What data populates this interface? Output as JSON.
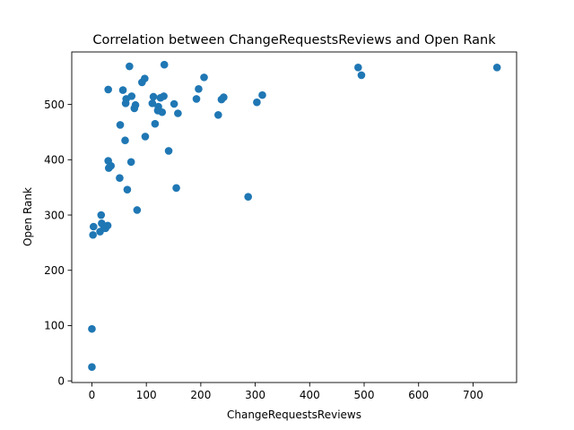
{
  "chart_data": {
    "type": "scatter",
    "title": "Correlation between ChangeRequestsReviews and Open Rank",
    "xlabel": "ChangeRequestsReviews",
    "ylabel": "Open Rank",
    "xlim": [
      -37,
      780
    ],
    "ylim": [
      -3,
      595
    ],
    "xticks": [
      0,
      100,
      200,
      300,
      400,
      500,
      600,
      700
    ],
    "yticks": [
      0,
      100,
      200,
      300,
      400,
      500
    ],
    "grid": false,
    "marker_color": "#1f77b4",
    "points": [
      {
        "x": 0,
        "y": 25
      },
      {
        "x": 0,
        "y": 94
      },
      {
        "x": 2,
        "y": 264
      },
      {
        "x": 3,
        "y": 279
      },
      {
        "x": 15,
        "y": 270
      },
      {
        "x": 17,
        "y": 300
      },
      {
        "x": 18,
        "y": 285
      },
      {
        "x": 22,
        "y": 280
      },
      {
        "x": 25,
        "y": 276
      },
      {
        "x": 29,
        "y": 281
      },
      {
        "x": 30,
        "y": 398
      },
      {
        "x": 31,
        "y": 385
      },
      {
        "x": 35,
        "y": 389
      },
      {
        "x": 30,
        "y": 527
      },
      {
        "x": 51,
        "y": 367
      },
      {
        "x": 52,
        "y": 463
      },
      {
        "x": 57,
        "y": 526
      },
      {
        "x": 61,
        "y": 435
      },
      {
        "x": 62,
        "y": 502
      },
      {
        "x": 63,
        "y": 510
      },
      {
        "x": 65,
        "y": 346
      },
      {
        "x": 69,
        "y": 569
      },
      {
        "x": 72,
        "y": 396
      },
      {
        "x": 73,
        "y": 515
      },
      {
        "x": 78,
        "y": 493
      },
      {
        "x": 80,
        "y": 499
      },
      {
        "x": 83,
        "y": 309
      },
      {
        "x": 92,
        "y": 540
      },
      {
        "x": 97,
        "y": 547
      },
      {
        "x": 98,
        "y": 442
      },
      {
        "x": 111,
        "y": 502
      },
      {
        "x": 113,
        "y": 514
      },
      {
        "x": 116,
        "y": 465
      },
      {
        "x": 121,
        "y": 489
      },
      {
        "x": 122,
        "y": 496
      },
      {
        "x": 126,
        "y": 512
      },
      {
        "x": 129,
        "y": 486
      },
      {
        "x": 132,
        "y": 515
      },
      {
        "x": 133,
        "y": 572
      },
      {
        "x": 141,
        "y": 416
      },
      {
        "x": 151,
        "y": 501
      },
      {
        "x": 155,
        "y": 349
      },
      {
        "x": 158,
        "y": 484
      },
      {
        "x": 192,
        "y": 510
      },
      {
        "x": 196,
        "y": 528
      },
      {
        "x": 206,
        "y": 549
      },
      {
        "x": 232,
        "y": 481
      },
      {
        "x": 238,
        "y": 509
      },
      {
        "x": 242,
        "y": 513
      },
      {
        "x": 287,
        "y": 333
      },
      {
        "x": 303,
        "y": 504
      },
      {
        "x": 313,
        "y": 517
      },
      {
        "x": 489,
        "y": 567
      },
      {
        "x": 495,
        "y": 553
      },
      {
        "x": 744,
        "y": 567
      }
    ]
  }
}
